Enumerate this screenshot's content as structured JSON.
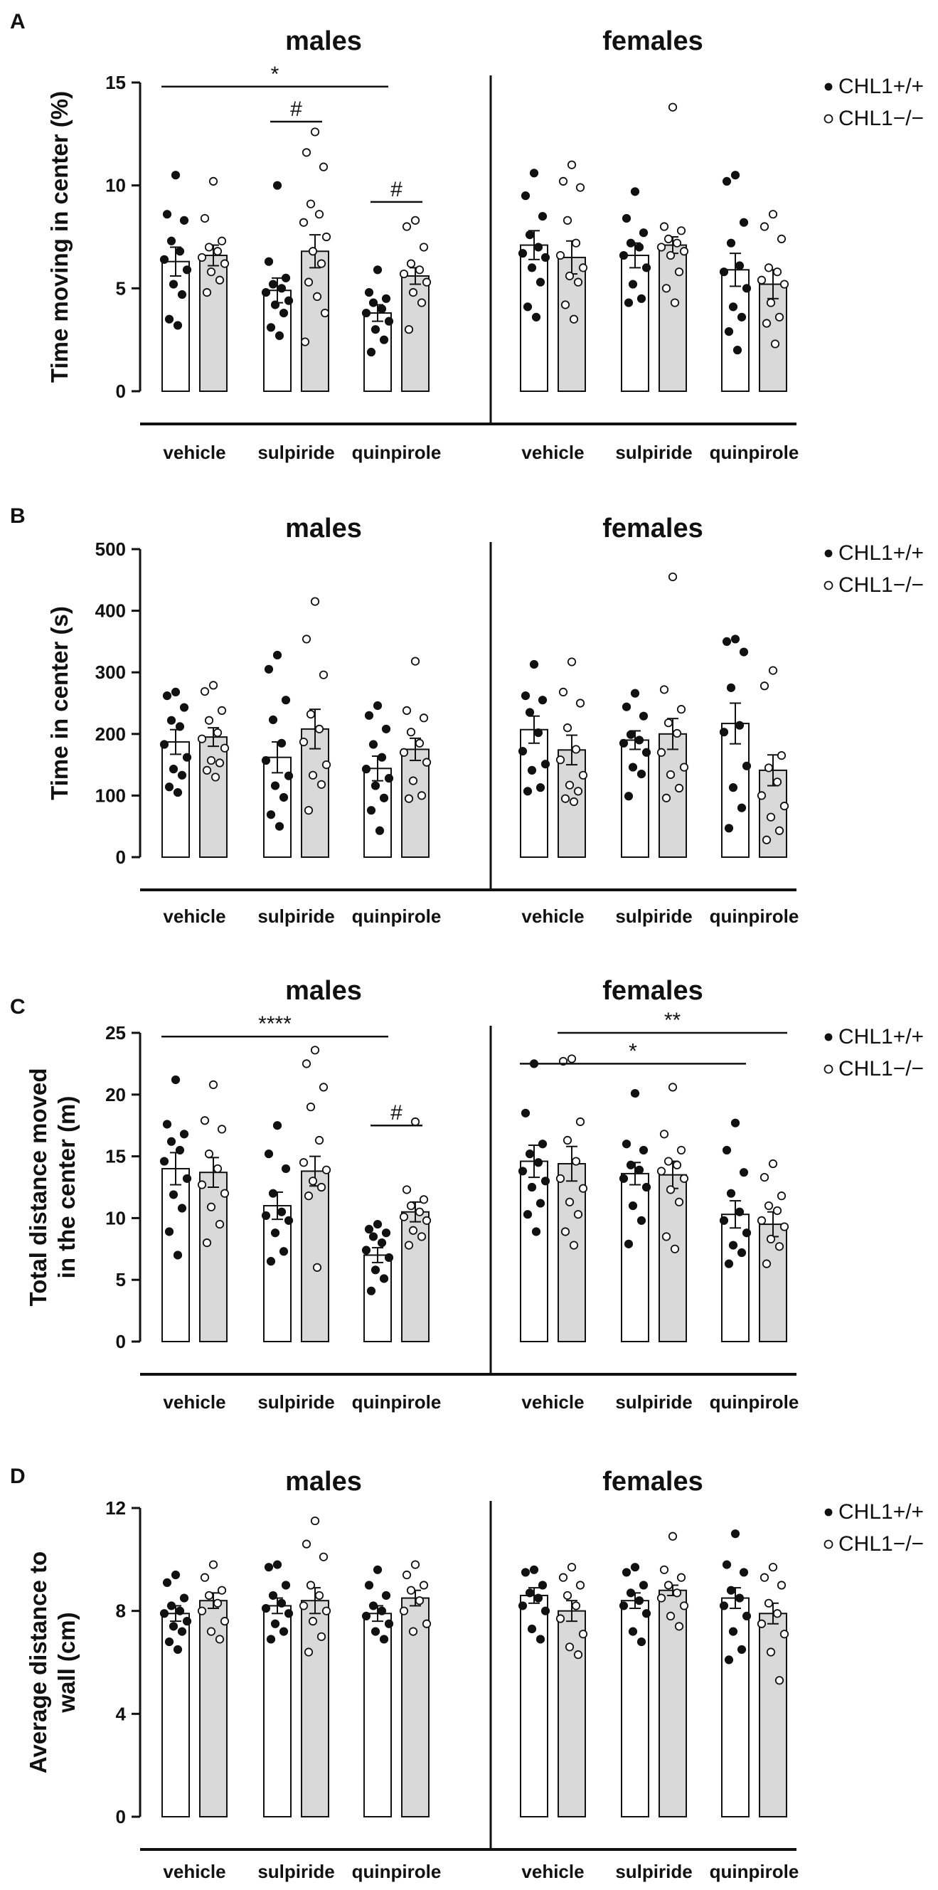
{
  "colors": {
    "axis": "#111111",
    "bar_wt": "#ffffff",
    "bar_ko": "#d9d9d9",
    "dot": "#111111"
  },
  "legend": [
    "CHL1+/+",
    "CHL1−/−"
  ],
  "chart_data": [
    {
      "panel": "A",
      "type": "bar",
      "title_left": "males",
      "title_right": "females",
      "ylabel": "Time moving in center (%)",
      "ylim": [
        0,
        15
      ],
      "yticks": [
        0,
        5,
        10,
        15
      ],
      "categories": [
        "vehicle",
        "sulpiride",
        "quinpirole",
        "vehicle",
        "sulpiride",
        "quinpirole"
      ],
      "series": [
        {
          "name": "CHL1+/+",
          "values": [
            6.3,
            4.9,
            3.8,
            7.1,
            6.6,
            5.9
          ],
          "sem": [
            0.7,
            0.6,
            0.4,
            0.7,
            0.6,
            0.8
          ],
          "points": [
            [
              10.5,
              8.6,
              8.3,
              7.3,
              6.8,
              6.4,
              5.9,
              5.2,
              4.7,
              3.5,
              3.2
            ],
            [
              10.0,
              6.3,
              5.5,
              5.2,
              5.0,
              4.8,
              4.4,
              4.2,
              3.8,
              3.1,
              2.7
            ],
            [
              5.9,
              4.8,
              4.5,
              4.3,
              4.0,
              3.8,
              3.4,
              3.0,
              2.5,
              1.9
            ],
            [
              10.6,
              9.5,
              8.5,
              7.6,
              7.0,
              6.7,
              6.5,
              6.0,
              5.3,
              4.1,
              3.6
            ],
            [
              9.7,
              8.4,
              7.7,
              7.2,
              7.0,
              6.6,
              6.0,
              5.2,
              4.5,
              4.3
            ],
            [
              10.5,
              10.2,
              8.2,
              7.2,
              6.1,
              5.8,
              5.0,
              4.1,
              3.6,
              2.9,
              2.0
            ]
          ]
        },
        {
          "name": "CHL1−/−",
          "values": [
            6.6,
            6.8,
            5.6,
            6.5,
            7.1,
            5.2
          ],
          "sem": [
            0.5,
            0.8,
            0.4,
            0.8,
            0.4,
            0.7
          ],
          "points": [
            [
              10.2,
              8.4,
              7.3,
              7.0,
              6.8,
              6.5,
              6.2,
              5.8,
              5.4,
              4.8
            ],
            [
              12.6,
              11.6,
              10.9,
              9.1,
              8.6,
              8.2,
              7.5,
              6.8,
              6.2,
              5.3,
              4.6,
              3.8,
              2.4
            ],
            [
              8.3,
              8.0,
              7.0,
              6.2,
              5.9,
              5.7,
              5.3,
              4.8,
              4.3,
              3.0
            ],
            [
              11.0,
              10.2,
              9.9,
              8.3,
              7.2,
              6.6,
              6.0,
              5.6,
              5.3,
              4.2,
              3.5
            ],
            [
              13.8,
              8.0,
              7.8,
              7.4,
              7.2,
              7.0,
              6.8,
              6.6,
              5.8,
              5.0,
              4.3
            ],
            [
              8.6,
              8.0,
              7.4,
              6.0,
              5.8,
              5.4,
              5.2,
              4.3,
              3.6,
              3.3,
              2.3
            ]
          ]
        }
      ],
      "significance": [
        {
          "label": "*",
          "from": 0,
          "to": 2,
          "group": "wt",
          "y": 14.8
        },
        {
          "label": "#",
          "from": 1,
          "to": 1,
          "group": "pair",
          "y": 13.1
        },
        {
          "label": "#",
          "from": 2,
          "to": 2,
          "group": "pair",
          "y": 9.2
        }
      ]
    },
    {
      "panel": "B",
      "type": "bar",
      "title_left": "males",
      "title_right": "females",
      "ylabel": "Time in center (s)",
      "ylim": [
        0,
        500
      ],
      "yticks": [
        0,
        100,
        200,
        300,
        400,
        500
      ],
      "categories": [
        "vehicle",
        "sulpiride",
        "quinpirole",
        "vehicle",
        "sulpiride",
        "quinpirole"
      ],
      "series": [
        {
          "name": "CHL1+/+",
          "values": [
            187,
            162,
            144,
            207,
            190,
            217
          ],
          "sem": [
            20,
            25,
            20,
            22,
            15,
            33
          ],
          "points": [
            [
              268,
              262,
              243,
              222,
              212,
              183,
              162,
              143,
              133,
              114,
              105
            ],
            [
              328,
              305,
              255,
              223,
              185,
              157,
              132,
              116,
              97,
              69,
              50
            ],
            [
              246,
              230,
              208,
              183,
              162,
              143,
              128,
              116,
              96,
              76,
              43
            ],
            [
              313,
              262,
              255,
              235,
              202,
              172,
              151,
              141,
              113,
              107
            ],
            [
              266,
              244,
              229,
              199,
              190,
              185,
              170,
              146,
              135,
              99
            ],
            [
              354,
              350,
              333,
              275,
              214,
              203,
              148,
              113,
              80,
              47
            ]
          ]
        },
        {
          "name": "CHL1−/−",
          "values": [
            195,
            208,
            175,
            174,
            200,
            141
          ],
          "sem": [
            15,
            32,
            18,
            24,
            25,
            25
          ],
          "points": [
            [
              279,
              269,
              238,
              222,
              202,
              192,
              177,
              157,
              153,
              141,
              130
            ],
            [
              415,
              354,
              296,
              232,
              208,
              187,
              150,
              133,
              118,
              76
            ],
            [
              318,
              238,
              226,
              203,
              185,
              170,
              154,
              124,
              100,
              95
            ],
            [
              317,
              268,
              250,
              210,
              175,
              158,
              133,
              117,
              107,
              95,
              90
            ],
            [
              455,
              272,
              240,
              218,
              201,
              170,
              146,
              134,
              112,
              96
            ],
            [
              303,
              278,
              165,
              145,
              122,
              100,
              83,
              65,
              43,
              28
            ]
          ]
        }
      ],
      "significance": []
    },
    {
      "panel": "C",
      "type": "bar",
      "title_left": "males",
      "title_right": "females",
      "ylabel": [
        "Total distance moved",
        "in the center (m)"
      ],
      "ylim": [
        0,
        25
      ],
      "yticks": [
        0,
        5,
        10,
        15,
        20,
        25
      ],
      "categories": [
        "vehicle",
        "sulpiride",
        "quinpirole",
        "vehicle",
        "sulpiride",
        "quinpirole"
      ],
      "series": [
        {
          "name": "CHL1+/+",
          "values": [
            14.0,
            11.0,
            7.0,
            14.6,
            13.6,
            10.3
          ],
          "sem": [
            1.3,
            1.1,
            0.6,
            1.3,
            0.9,
            1.1
          ],
          "points": [
            [
              21.2,
              17.6,
              16.8,
              16.2,
              15.5,
              14.6,
              13.2,
              11.9,
              10.8,
              8.9,
              7.0
            ],
            [
              17.5,
              15.2,
              14.0,
              12.0,
              10.5,
              10.2,
              9.8,
              8.8,
              7.3,
              6.5
            ],
            [
              9.5,
              9.1,
              8.8,
              8.5,
              8.0,
              7.4,
              6.8,
              5.8,
              5.1,
              4.1
            ],
            [
              22.5,
              18.5,
              16.0,
              15.2,
              14.5,
              13.8,
              13.0,
              12.5,
              11.2,
              10.3,
              8.9
            ],
            [
              20.1,
              16.0,
              15.5,
              14.3,
              13.9,
              13.2,
              12.5,
              11.0,
              9.8,
              7.9
            ],
            [
              17.7,
              15.5,
              13.7,
              12.0,
              10.5,
              9.8,
              8.8,
              7.8,
              7.2,
              6.3
            ]
          ]
        },
        {
          "name": "CHL1−/−",
          "values": [
            13.7,
            13.8,
            10.5,
            14.4,
            13.5,
            9.5
          ],
          "sem": [
            1.2,
            1.2,
            0.8,
            1.4,
            1.1,
            1.0
          ],
          "points": [
            [
              20.8,
              17.9,
              17.2,
              15.2,
              14.0,
              12.7,
              12.0,
              10.9,
              9.5,
              8.0
            ],
            [
              23.6,
              22.5,
              20.6,
              19.0,
              16.3,
              14.5,
              13.9,
              13.0,
              12.5,
              11.8,
              6.0
            ],
            [
              17.8,
              12.3,
              11.5,
              11.0,
              10.5,
              10.1,
              9.8,
              9.0,
              8.5,
              7.8
            ],
            [
              22.9,
              22.7,
              17.8,
              16.3,
              14.6,
              13.2,
              12.4,
              11.3,
              10.3,
              8.9,
              7.8
            ],
            [
              20.6,
              16.8,
              15.5,
              14.6,
              14.3,
              13.8,
              13.2,
              12.3,
              11.3,
              8.5,
              7.5
            ],
            [
              14.4,
              13.3,
              11.8,
              11.0,
              10.6,
              9.8,
              9.3,
              8.3,
              7.7,
              6.3
            ]
          ]
        }
      ],
      "significance": [
        {
          "label": "****",
          "from": 0,
          "to": 2,
          "group": "wt",
          "y": 24.7
        },
        {
          "label": "#",
          "from": 2,
          "to": 2,
          "group": "pair",
          "y": 17.5
        },
        {
          "label": "*",
          "from": 3,
          "to": 5,
          "group": "wt",
          "y": 22.5
        },
        {
          "label": "**",
          "from": 3,
          "to": 5,
          "group": "ko",
          "y": 25.0
        }
      ]
    },
    {
      "panel": "D",
      "type": "bar",
      "title_left": "males",
      "title_right": "females",
      "ylabel": [
        "Average distance to",
        "wall (cm)"
      ],
      "ylim": [
        0,
        12
      ],
      "yticks": [
        0,
        4,
        8,
        12
      ],
      "categories": [
        "vehicle",
        "sulpiride",
        "quinpirole",
        "vehicle",
        "sulpiride",
        "quinpirole"
      ],
      "series": [
        {
          "name": "CHL1+/+",
          "values": [
            7.9,
            8.2,
            7.9,
            8.6,
            8.4,
            8.5
          ],
          "sem": [
            0.3,
            0.3,
            0.3,
            0.3,
            0.3,
            0.4
          ],
          "points": [
            [
              9.4,
              9.1,
              8.5,
              8.2,
              8.0,
              7.9,
              7.6,
              7.4,
              7.2,
              6.8,
              6.5
            ],
            [
              9.8,
              9.7,
              9.0,
              8.6,
              8.3,
              8.1,
              7.9,
              7.5,
              7.2,
              6.9
            ],
            [
              9.6,
              9.0,
              8.6,
              8.2,
              8.0,
              7.8,
              7.5,
              7.2,
              6.9
            ],
            [
              9.6,
              9.5,
              9.0,
              8.7,
              8.5,
              8.2,
              8.0,
              7.3,
              6.9
            ],
            [
              9.7,
              9.5,
              9.0,
              8.7,
              8.4,
              8.2,
              7.9,
              7.2,
              6.8
            ],
            [
              11.0,
              9.8,
              9.5,
              8.8,
              8.5,
              8.2,
              7.8,
              7.2,
              6.5,
              6.1
            ]
          ]
        },
        {
          "name": "CHL1−/−",
          "values": [
            8.4,
            8.4,
            8.5,
            8.0,
            8.8,
            7.9
          ],
          "sem": [
            0.3,
            0.5,
            0.3,
            0.4,
            0.2,
            0.4
          ],
          "points": [
            [
              9.8,
              9.3,
              8.8,
              8.6,
              8.3,
              8.0,
              7.6,
              7.2,
              6.9
            ],
            [
              11.5,
              10.6,
              10.1,
              9.0,
              8.6,
              8.2,
              8.0,
              7.6,
              7.0,
              6.4
            ],
            [
              9.8,
              9.4,
              9.0,
              8.8,
              8.4,
              8.0,
              7.5,
              7.2
            ],
            [
              9.7,
              9.3,
              9.0,
              8.6,
              8.2,
              7.7,
              7.1,
              6.6,
              6.3
            ],
            [
              10.9,
              9.6,
              9.3,
              9.0,
              8.7,
              8.5,
              8.2,
              7.8,
              7.4
            ],
            [
              9.7,
              9.3,
              9.0,
              8.3,
              7.9,
              7.5,
              7.1,
              6.4,
              5.3
            ]
          ]
        }
      ],
      "significance": []
    }
  ]
}
